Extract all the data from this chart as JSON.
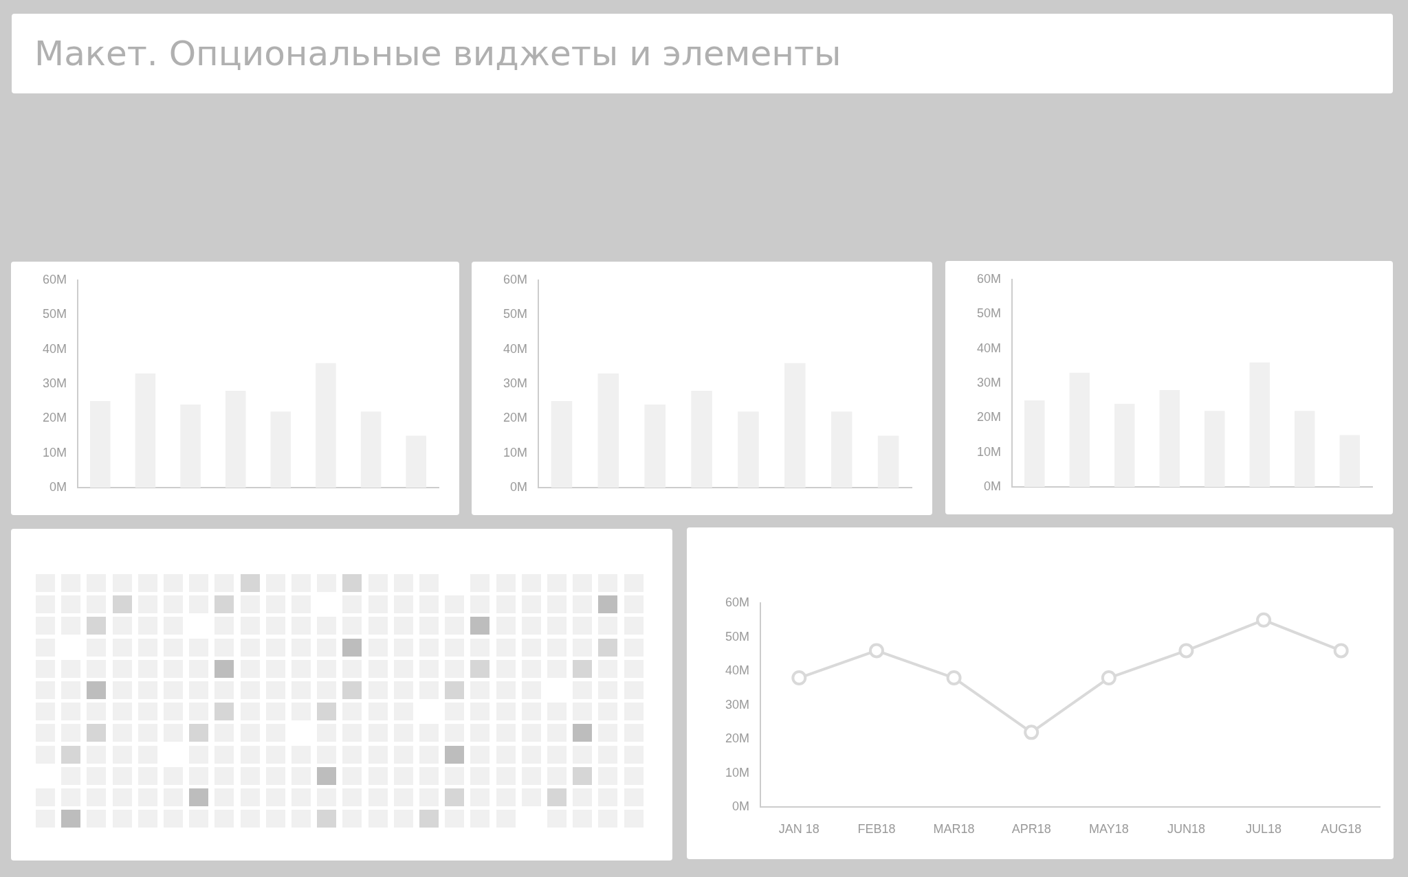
{
  "chart_data": [
    {
      "type": "bar",
      "title": "Макет. Опциональные виджеты и элементы",
      "categories": [
        null,
        null,
        null,
        null,
        null,
        null,
        null,
        null
      ],
      "values": [
        25,
        33,
        24,
        28,
        22,
        36,
        22,
        15
      ],
      "color": "#f0f0f0",
      "ylim": [
        0,
        60
      ],
      "yticks": [
        {
          "value": 0,
          "label": "0M"
        },
        {
          "value": 10,
          "label": "10M"
        },
        {
          "value": 20,
          "label": "20M"
        },
        {
          "value": 30,
          "label": "30M"
        },
        {
          "value": 40,
          "label": "40M"
        },
        {
          "value": 50,
          "label": "50M"
        },
        {
          "value": 60,
          "label": "60M"
        }
      ],
      "tick_labels": "y"
    },
    {
      "type": "bar",
      "categories": [
        null,
        null,
        null,
        null,
        null,
        null,
        null,
        null
      ],
      "values": [
        25,
        33,
        24,
        28,
        22,
        36,
        22,
        15
      ],
      "color": "#f0f0f0",
      "ylim": [
        0,
        60
      ],
      "yticks": [
        {
          "value": 0,
          "label": "0M"
        },
        {
          "value": 10,
          "label": "10M"
        },
        {
          "value": 20,
          "label": "20M"
        },
        {
          "value": 30,
          "label": "30M"
        },
        {
          "value": 40,
          "label": "40M"
        },
        {
          "value": 50,
          "label": "50M"
        },
        {
          "value": 60,
          "label": "60M"
        }
      ],
      "tick_labels": "y"
    },
    {
      "type": "bar",
      "categories": [
        null,
        null,
        null,
        null,
        null,
        null,
        null,
        null
      ],
      "values": [
        25,
        33,
        24,
        28,
        22,
        36,
        22,
        15
      ],
      "color": "#f0f0f0",
      "ylim": [
        0,
        60
      ],
      "yticks": [
        {
          "value": 0,
          "label": "0M"
        },
        {
          "value": 10,
          "label": "10M"
        },
        {
          "value": 20,
          "label": "20M"
        },
        {
          "value": 30,
          "label": "30M"
        },
        {
          "value": 40,
          "label": "40M"
        },
        {
          "value": 50,
          "label": "50M"
        },
        {
          "value": 60,
          "label": "60M"
        }
      ],
      "tick_labels": "y"
    },
    {
      "type": "line",
      "categories": [
        "JAN 18",
        "FEB18",
        "MAR18",
        "APR18",
        "MAY18",
        "JUN18",
        "JUL18",
        "AUG18"
      ],
      "series": [
        {
          "color": "#d9d9d9",
          "values": [
            38,
            46,
            38,
            22,
            38,
            46,
            55,
            46
          ]
        }
      ],
      "ylim": [
        0,
        60
      ],
      "yticks": [
        {
          "value": 0,
          "label": "0M"
        },
        {
          "value": 10,
          "label": "10M"
        },
        {
          "value": 20,
          "label": "20M"
        },
        {
          "value": 30,
          "label": "30M"
        },
        {
          "value": 40,
          "label": "40M"
        },
        {
          "value": 50,
          "label": "50M"
        },
        {
          "value": 60,
          "label": "60M"
        }
      ],
      "marker": "circle"
    }
  ]
}
